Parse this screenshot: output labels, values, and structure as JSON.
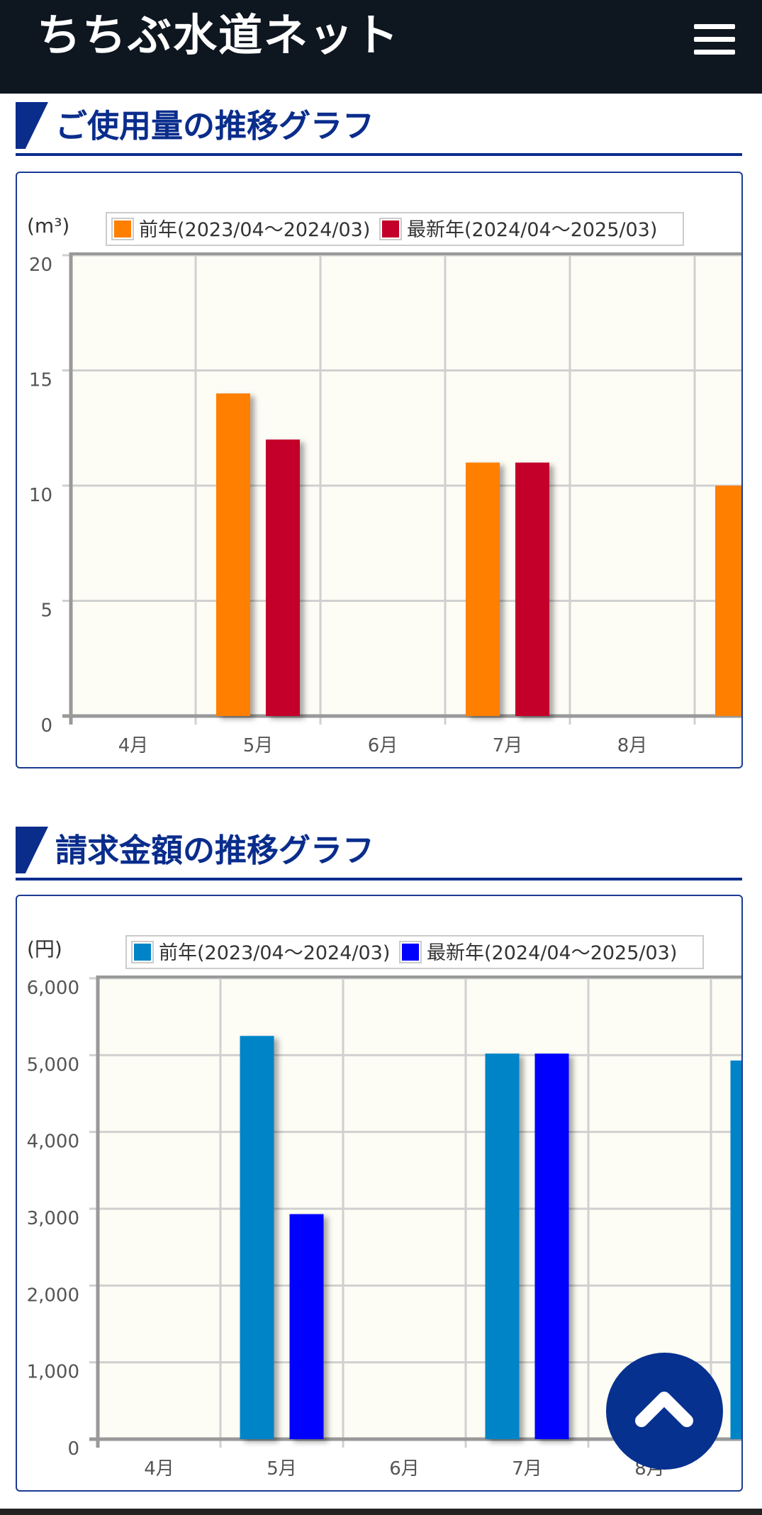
{
  "header": {
    "site_title": "ちちぶ水道ネット",
    "menu_icon": "hamburger-menu-icon"
  },
  "sections": [
    {
      "title": "ご使用量の推移グラフ"
    },
    {
      "title": "請求金額の推移グラフ"
    }
  ],
  "scroll_top": {
    "icon": "chevron-up-icon"
  },
  "chart_data": [
    {
      "type": "bar",
      "unit_label": "(m³)",
      "categories": [
        "4月",
        "5月",
        "6月",
        "7月",
        "8月"
      ],
      "series": [
        {
          "name": "前年(2023/04～2024/03)",
          "color": "#ff7f00",
          "values": [
            0,
            14,
            0,
            11,
            0
          ]
        },
        {
          "name": "最新年(2024/04～2025/03)",
          "color": "#c4002a",
          "values": [
            0,
            12,
            0,
            11,
            0
          ]
        }
      ],
      "ylim": [
        0,
        20
      ],
      "yticks": [
        "0",
        "5",
        "10",
        "15",
        "20"
      ],
      "grid": true,
      "legend": "top"
    },
    {
      "type": "bar",
      "unit_label": "(円)",
      "categories": [
        "4月",
        "5月",
        "6月",
        "7月",
        "8月"
      ],
      "series": [
        {
          "name": "前年(2023/04～2024/03)",
          "color": "#0084c8",
          "values": [
            0,
            5250,
            0,
            5020,
            0
          ]
        },
        {
          "name": "最新年(2024/04～2025/03)",
          "color": "#0000ff",
          "values": [
            0,
            2930,
            0,
            5020,
            0
          ]
        }
      ],
      "ylim": [
        0,
        6000
      ],
      "yticks": [
        "0",
        "1,000",
        "2,000",
        "3,000",
        "4,000",
        "5,000",
        "6,000"
      ],
      "grid": true,
      "legend": "top"
    }
  ]
}
